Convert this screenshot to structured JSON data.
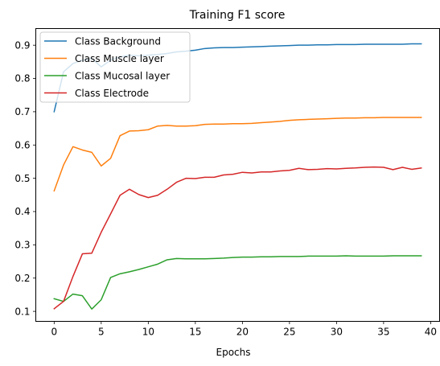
{
  "chart_data": {
    "type": "line",
    "title": "Training F1 score",
    "xlabel": "Epochs",
    "ylabel": "",
    "xlim": [
      -1.95,
      40.95
    ],
    "ylim": [
      0.07,
      0.95
    ],
    "xticks": [
      0,
      5,
      10,
      15,
      20,
      25,
      30,
      35,
      40
    ],
    "yticks": [
      0.1,
      0.2,
      0.3,
      0.4,
      0.5,
      0.6,
      0.7,
      0.8,
      0.9
    ],
    "xtick_labels": [
      "0",
      "5",
      "10",
      "15",
      "20",
      "25",
      "30",
      "35",
      "40"
    ],
    "ytick_labels": [
      "0.1",
      "0.2",
      "0.3",
      "0.4",
      "0.5",
      "0.6",
      "0.7",
      "0.8",
      "0.9"
    ],
    "grid": false,
    "legend_position": "upper-left",
    "x": [
      0,
      1,
      2,
      3,
      4,
      5,
      6,
      7,
      8,
      9,
      10,
      11,
      12,
      13,
      14,
      15,
      16,
      17,
      18,
      19,
      20,
      21,
      22,
      23,
      24,
      25,
      26,
      27,
      28,
      29,
      30,
      31,
      32,
      33,
      34,
      35,
      36,
      37,
      38,
      39
    ],
    "series": [
      {
        "name": "Class Background",
        "color": "#1f77b4",
        "values": [
          0.7,
          0.82,
          0.845,
          0.855,
          0.86,
          0.835,
          0.855,
          0.865,
          0.87,
          0.868,
          0.87,
          0.872,
          0.875,
          0.88,
          0.882,
          0.885,
          0.89,
          0.892,
          0.893,
          0.893,
          0.894,
          0.895,
          0.896,
          0.897,
          0.898,
          0.899,
          0.9,
          0.9,
          0.901,
          0.901,
          0.902,
          0.902,
          0.902,
          0.903,
          0.903,
          0.903,
          0.903,
          0.903,
          0.904,
          0.904
        ]
      },
      {
        "name": "Class Muscle layer",
        "color": "#ff7f0e",
        "values": [
          0.462,
          0.54,
          0.595,
          0.585,
          0.578,
          0.537,
          0.56,
          0.628,
          0.642,
          0.643,
          0.646,
          0.657,
          0.659,
          0.657,
          0.657,
          0.658,
          0.662,
          0.663,
          0.663,
          0.664,
          0.664,
          0.665,
          0.667,
          0.669,
          0.671,
          0.674,
          0.676,
          0.677,
          0.678,
          0.679,
          0.68,
          0.681,
          0.681,
          0.682,
          0.682,
          0.683,
          0.683,
          0.683,
          0.683,
          0.683
        ]
      },
      {
        "name": "Class Mucosal layer",
        "color": "#2ca02c",
        "values": [
          0.138,
          0.13,
          0.152,
          0.147,
          0.107,
          0.135,
          0.202,
          0.213,
          0.219,
          0.226,
          0.234,
          0.242,
          0.255,
          0.259,
          0.258,
          0.258,
          0.258,
          0.259,
          0.26,
          0.262,
          0.263,
          0.263,
          0.264,
          0.264,
          0.265,
          0.265,
          0.265,
          0.266,
          0.266,
          0.266,
          0.266,
          0.267,
          0.266,
          0.266,
          0.266,
          0.266,
          0.267,
          0.267,
          0.267,
          0.267
        ]
      },
      {
        "name": "Class Electrode",
        "color": "#d62728",
        "values": [
          0.108,
          0.13,
          0.205,
          0.273,
          0.275,
          0.338,
          0.393,
          0.449,
          0.467,
          0.451,
          0.442,
          0.449,
          0.467,
          0.488,
          0.5,
          0.499,
          0.503,
          0.503,
          0.51,
          0.512,
          0.518,
          0.516,
          0.519,
          0.519,
          0.522,
          0.524,
          0.53,
          0.526,
          0.527,
          0.529,
          0.528,
          0.53,
          0.531,
          0.533,
          0.534,
          0.533,
          0.526,
          0.533,
          0.527,
          0.531
        ]
      }
    ]
  }
}
